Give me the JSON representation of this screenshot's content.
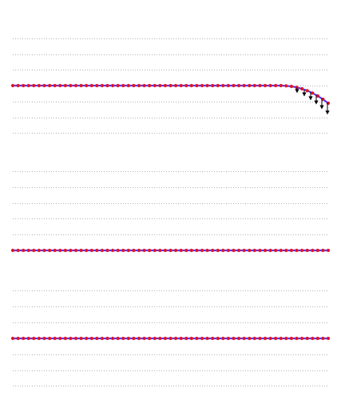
{
  "colors": {
    "background": "#ffffff",
    "guide": "#9a9a9a",
    "strand": "#4a3aff",
    "node": "#e0142a",
    "arrow": "#000000"
  },
  "groups": [
    {
      "name": "group-1",
      "guides": 7,
      "active_guide": 4,
      "strand": "curving-with-arrows"
    },
    {
      "name": "group-2",
      "guides": 6,
      "active_guide": 6,
      "strand": "straight"
    },
    {
      "name": "group-3",
      "guides": 7,
      "active_guide": 4,
      "strand": "straight"
    }
  ]
}
